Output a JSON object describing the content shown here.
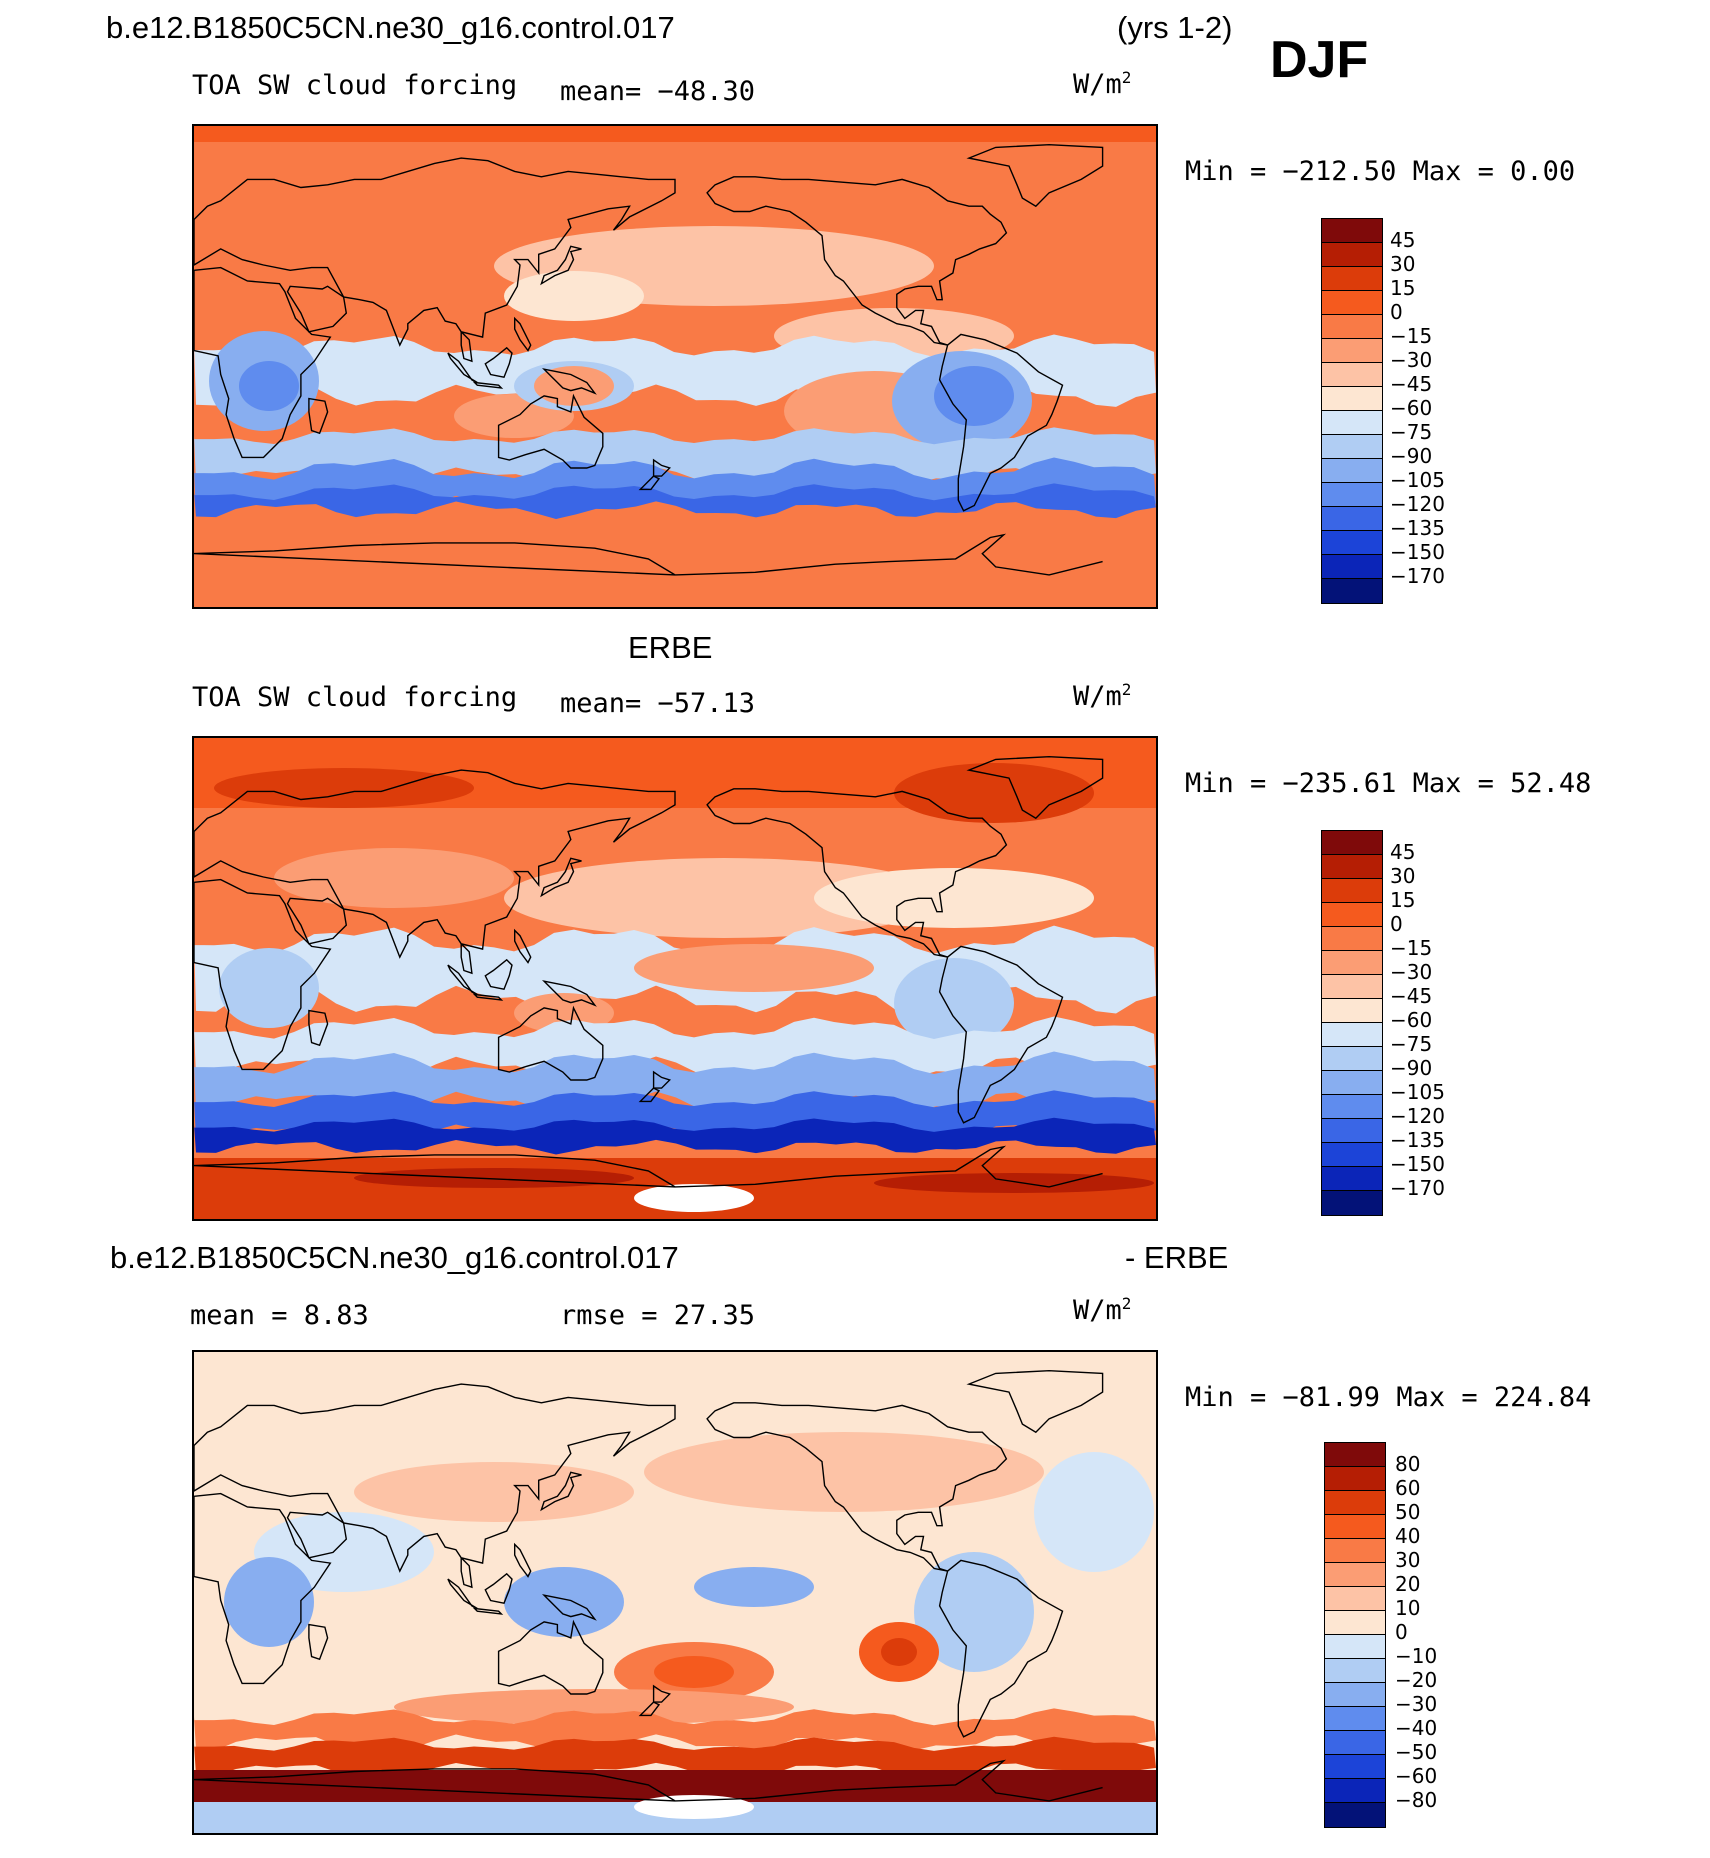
{
  "header": {
    "case_name": "b.e12.B1850C5CN.ne30_g16.control.017",
    "years": "(yrs 1-2)",
    "season": "DJF"
  },
  "panels": [
    {
      "id": "model",
      "title_above": "",
      "variable": "TOA SW cloud forcing",
      "stat_left": "",
      "stat_mid": "mean= −48.30",
      "units": "W/m",
      "units_sup": "2",
      "minmax": "Min = −212.50 Max =   0.00",
      "palette": "sw"
    },
    {
      "id": "obs",
      "title_above": "ERBE",
      "variable": "TOA SW cloud forcing",
      "stat_left": "",
      "stat_mid": "mean= −57.13",
      "units": "W/m",
      "units_sup": "2",
      "minmax": "Min = −235.61 Max =  52.48",
      "palette": "sw"
    },
    {
      "id": "diff",
      "title_left": "b.e12.B1850C5CN.ne30_g16.control.017",
      "title_right": "- ERBE",
      "variable": "",
      "stat_left": "mean =   8.83",
      "stat_mid": "rmse =  27.35",
      "units": "W/m",
      "units_sup": "2",
      "minmax": "Min = −81.99 Max = 224.84",
      "palette": "diff"
    }
  ],
  "colorbars": {
    "sw_ticks": [
      "45",
      "30",
      "15",
      "0",
      "−15",
      "−30",
      "−45",
      "−60",
      "−75",
      "−90",
      "−105",
      "−120",
      "−135",
      "−150",
      "−170"
    ],
    "diff_ticks": [
      "80",
      "60",
      "50",
      "40",
      "30",
      "20",
      "10",
      "0",
      "−10",
      "−20",
      "−30",
      "−40",
      "−50",
      "−60",
      "−80"
    ],
    "colors": [
      "#7f0a0a",
      "#b51e04",
      "#dc3c0a",
      "#f55a1e",
      "#f97a46",
      "#fb9d74",
      "#fdc3a6",
      "#fde6d2",
      "#d5e6f8",
      "#b0cdf3",
      "#88aef0",
      "#5f8cee",
      "#3a66e6",
      "#1c44d8",
      "#0b25b8",
      "#031278"
    ]
  },
  "map_features": [
    "world-coastlines",
    "filled-contours"
  ]
}
